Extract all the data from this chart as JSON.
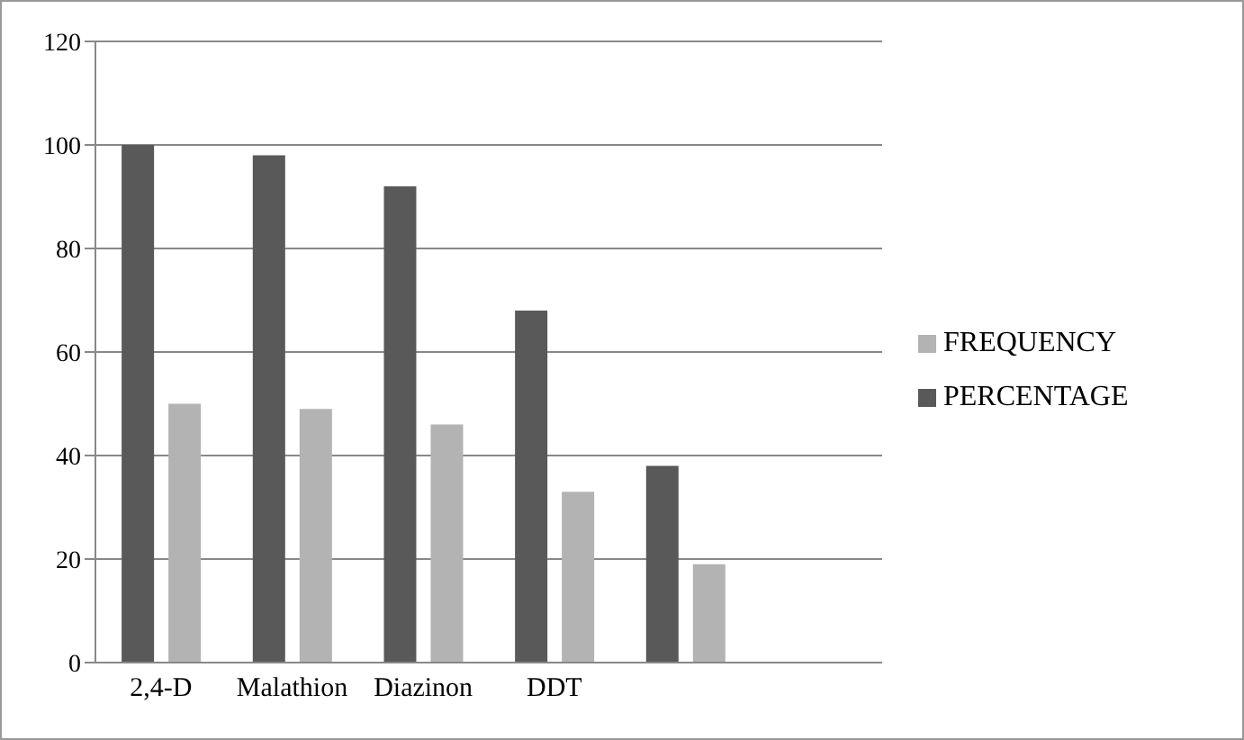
{
  "chart_data": {
    "type": "bar",
    "categories": [
      "2,4-D",
      "Malathion",
      "Diazinon",
      "DDT",
      null,
      null
    ],
    "series": [
      {
        "name": "PERCENTAGE",
        "color": "#595959",
        "values": [
          100,
          98,
          92,
          68,
          38,
          null
        ]
      },
      {
        "name": "FREQUENCY",
        "color": "#b3b3b3",
        "values": [
          50,
          49,
          46,
          33,
          19,
          null
        ]
      }
    ],
    "ylim": [
      0,
      120
    ],
    "yticks": [
      0,
      20,
      40,
      60,
      80,
      100,
      120
    ],
    "grid": "y",
    "legend": "right"
  }
}
